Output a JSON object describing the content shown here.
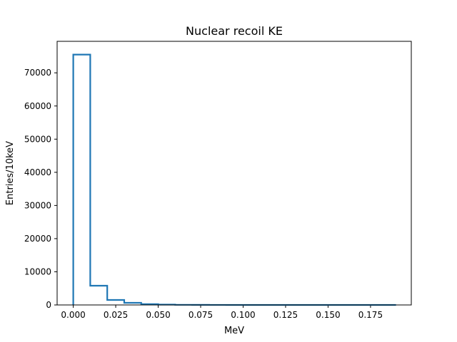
{
  "chart_data": {
    "type": "histogram-step",
    "title": "Nuclear recoil KE",
    "xlabel": "MeV",
    "ylabel": "Entries/10keV",
    "xlim": [
      -0.0095,
      0.199
    ],
    "ylim": [
      0,
      79500
    ],
    "grid": false,
    "bin_width": 0.01,
    "x_ticks": [
      0.0,
      0.025,
      0.05,
      0.075,
      0.1,
      0.125,
      0.15,
      0.175
    ],
    "x_tick_labels": [
      "0.000",
      "0.025",
      "0.050",
      "0.075",
      "0.100",
      "0.125",
      "0.150",
      "0.175"
    ],
    "y_ticks": [
      0,
      10000,
      20000,
      30000,
      40000,
      50000,
      60000,
      70000
    ],
    "y_tick_labels": [
      "0",
      "10000",
      "20000",
      "30000",
      "40000",
      "50000",
      "60000",
      "70000"
    ],
    "bin_edges": [
      0.0,
      0.01,
      0.02,
      0.03,
      0.04,
      0.05,
      0.06,
      0.07,
      0.08,
      0.09,
      0.1,
      0.11,
      0.12,
      0.13,
      0.14,
      0.15,
      0.16,
      0.17,
      0.18,
      0.19
    ],
    "values": [
      75500,
      5800,
      1500,
      650,
      250,
      100,
      40,
      20,
      10,
      5,
      3,
      2,
      1,
      1,
      0,
      0,
      0,
      0,
      0
    ],
    "color": "#1f77b4"
  }
}
